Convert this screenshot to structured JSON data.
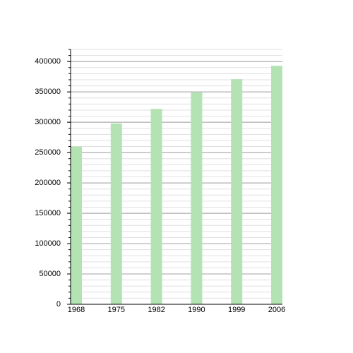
{
  "chart_data": {
    "type": "bar",
    "categories": [
      "1968",
      "1975",
      "1982",
      "1990",
      "1999",
      "2006"
    ],
    "values": [
      260000,
      298000,
      322000,
      349000,
      371000,
      393000
    ],
    "color": "#b3e2b3",
    "ylim": [
      0,
      420000
    ],
    "yticks": [
      0,
      50000,
      100000,
      150000,
      200000,
      250000,
      300000,
      350000,
      400000
    ],
    "grid": true,
    "minor_grid_step": 10000
  }
}
